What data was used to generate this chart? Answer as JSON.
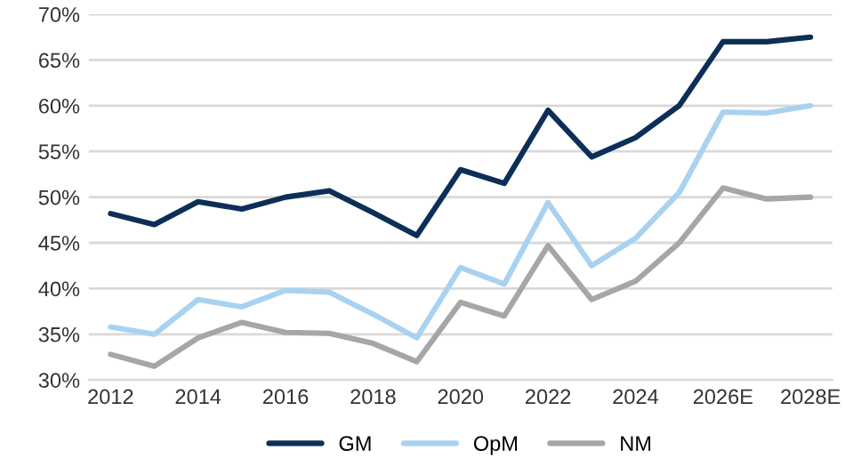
{
  "chart_data": {
    "type": "line",
    "categories": [
      "2012",
      null,
      "2014",
      null,
      "2016",
      null,
      "2018",
      null,
      "2020",
      null,
      "2022",
      null,
      "2024",
      null,
      "2026E",
      null,
      "2028E"
    ],
    "series": [
      {
        "name": "GM",
        "color": "#0c2f57",
        "values": [
          48.2,
          47,
          49.5,
          48.7,
          50,
          50.7,
          48.3,
          45.8,
          53,
          51.5,
          59.5,
          54.4,
          56.5,
          60,
          67,
          67,
          67.5
        ]
      },
      {
        "name": "OpM",
        "color": "#a9d2f0",
        "values": [
          35.8,
          35,
          38.8,
          38,
          39.8,
          39.6,
          37.2,
          34.6,
          42.3,
          40.5,
          49.4,
          42.5,
          45.5,
          50.5,
          59.3,
          59.2,
          60
        ]
      },
      {
        "name": "NM",
        "color": "#a6a6a6",
        "values": [
          32.8,
          31.5,
          34.6,
          36.3,
          35.2,
          35.1,
          34,
          32,
          38.5,
          37,
          44.7,
          38.8,
          40.8,
          45,
          51,
          49.8,
          50
        ]
      }
    ],
    "ylim": [
      30,
      70
    ],
    "yticks": [
      {
        "value": 30,
        "label": "30%"
      },
      {
        "value": 35,
        "label": "35%"
      },
      {
        "value": 40,
        "label": "40%"
      },
      {
        "value": 45,
        "label": "45%"
      },
      {
        "value": 50,
        "label": "50%"
      },
      {
        "value": 55,
        "label": "55%"
      },
      {
        "value": 60,
        "label": "60%"
      },
      {
        "value": 65,
        "label": "65%"
      },
      {
        "value": 70,
        "label": "70%"
      }
    ],
    "grid": "y",
    "legend": "bottom",
    "marker": "none",
    "line_style": "solid"
  }
}
